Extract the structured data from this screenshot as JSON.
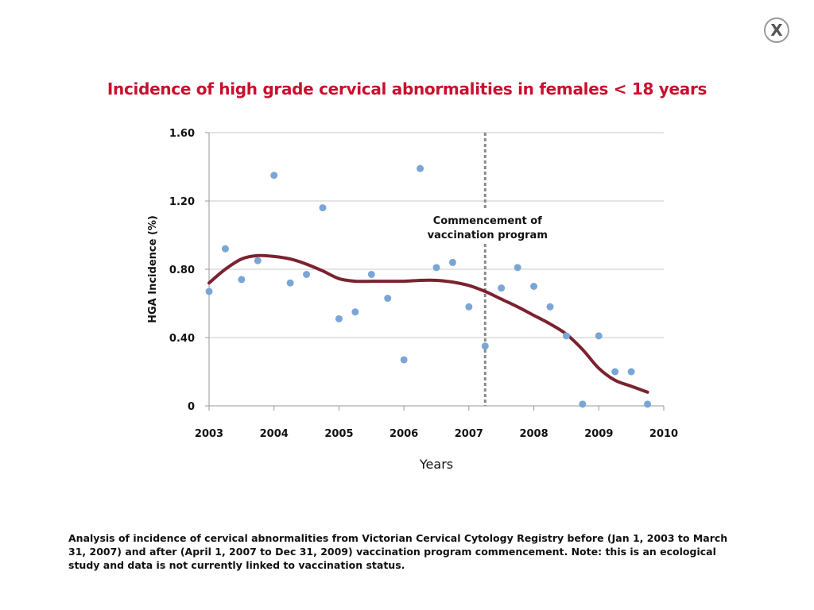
{
  "close_button": {
    "label": "X",
    "icon": "close-icon"
  },
  "chart_data": {
    "type": "scatter",
    "title": "Incidence of high grade cervical abnormalities in females < 18 years",
    "xlabel": "Years",
    "ylabel": "HGA Incidence (%)",
    "xlim": [
      2003,
      2010
    ],
    "ylim": [
      0,
      1.6
    ],
    "x_ticks": [
      2003,
      2004,
      2005,
      2006,
      2007,
      2008,
      2009,
      2010
    ],
    "y_ticks": [
      0,
      0.4,
      0.8,
      1.2,
      1.6
    ],
    "y_tick_labels": [
      "0",
      "0.40",
      "0.80",
      "1.20",
      "1.60"
    ],
    "grid": "horizontal",
    "colors": {
      "points": "#7aa6d6",
      "trend": "#7b2230",
      "marker_line": "#8a8a8a",
      "title": "#c8102e"
    },
    "series": [
      {
        "type": "scatter",
        "points": [
          [
            2003.0,
            0.67
          ],
          [
            2003.25,
            0.92
          ],
          [
            2003.5,
            0.74
          ],
          [
            2003.75,
            0.85
          ],
          [
            2004.0,
            1.35
          ],
          [
            2004.25,
            0.72
          ],
          [
            2004.5,
            0.77
          ],
          [
            2004.75,
            1.16
          ],
          [
            2005.0,
            0.51
          ],
          [
            2005.25,
            0.55
          ],
          [
            2005.5,
            0.77
          ],
          [
            2005.75,
            0.63
          ],
          [
            2006.0,
            0.27
          ],
          [
            2006.25,
            1.39
          ],
          [
            2006.5,
            0.81
          ],
          [
            2006.75,
            0.84
          ],
          [
            2007.0,
            0.58
          ],
          [
            2007.25,
            0.35
          ],
          [
            2007.5,
            0.69
          ],
          [
            2007.75,
            0.81
          ],
          [
            2008.0,
            0.7
          ],
          [
            2008.25,
            0.58
          ],
          [
            2008.5,
            0.41
          ],
          [
            2008.75,
            0.01
          ],
          [
            2009.0,
            0.41
          ],
          [
            2009.25,
            0.2
          ],
          [
            2009.5,
            0.2
          ],
          [
            2009.75,
            0.01
          ]
        ]
      },
      {
        "type": "trend",
        "points": [
          [
            2003.0,
            0.72
          ],
          [
            2003.25,
            0.8
          ],
          [
            2003.5,
            0.86
          ],
          [
            2003.75,
            0.88
          ],
          [
            2004.0,
            0.875
          ],
          [
            2004.25,
            0.86
          ],
          [
            2004.5,
            0.83
          ],
          [
            2004.75,
            0.79
          ],
          [
            2005.0,
            0.745
          ],
          [
            2005.25,
            0.73
          ],
          [
            2005.5,
            0.73
          ],
          [
            2005.75,
            0.73
          ],
          [
            2006.0,
            0.73
          ],
          [
            2006.25,
            0.735
          ],
          [
            2006.5,
            0.735
          ],
          [
            2006.75,
            0.725
          ],
          [
            2007.0,
            0.705
          ],
          [
            2007.25,
            0.67
          ],
          [
            2007.5,
            0.625
          ],
          [
            2007.75,
            0.58
          ],
          [
            2008.0,
            0.53
          ],
          [
            2008.25,
            0.48
          ],
          [
            2008.5,
            0.42
          ],
          [
            2008.75,
            0.33
          ],
          [
            2009.0,
            0.22
          ],
          [
            2009.25,
            0.15
          ],
          [
            2009.5,
            0.115
          ],
          [
            2009.75,
            0.08
          ]
        ]
      }
    ],
    "annotation": {
      "x": 2007.25,
      "line1": "Commencement of",
      "line2": "vaccination program"
    }
  },
  "footnote": "Analysis of incidence of cervical abnormalities from Victorian Cervical Cytology Registry before (Jan 1, 2003 to March 31, 2007) and after (April 1, 2007 to Dec 31, 2009) vaccination program commencement. Note: this is an ecological study and data is not currently linked to vaccination status."
}
